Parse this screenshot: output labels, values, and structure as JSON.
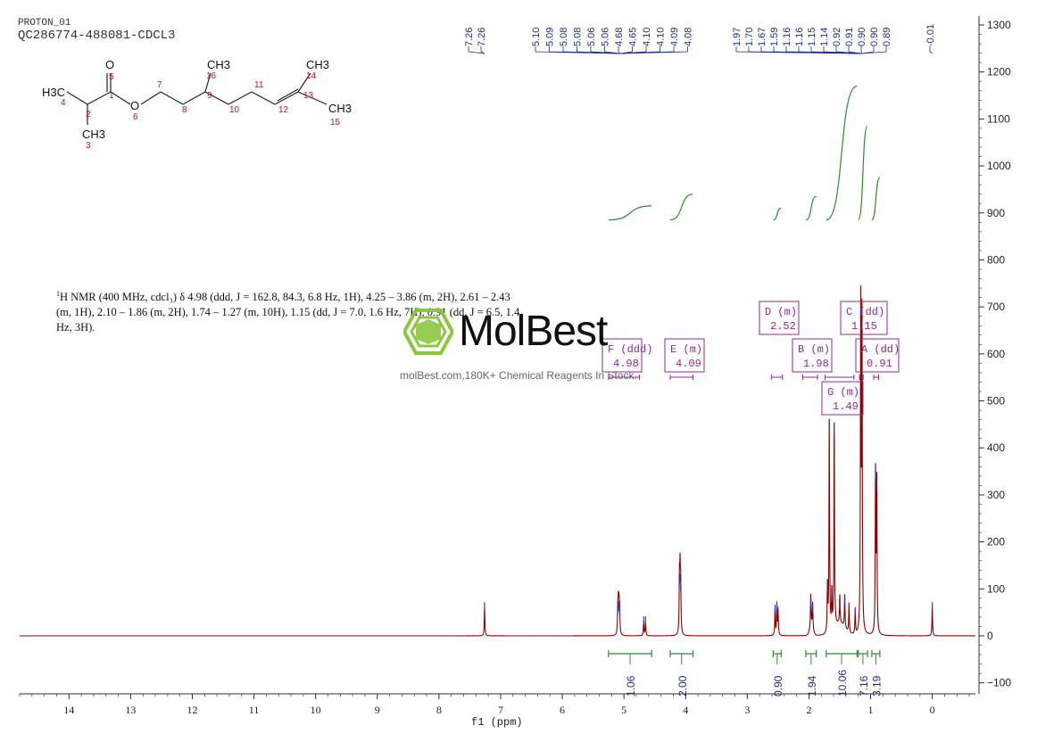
{
  "header": {
    "experiment": "PROTON_01",
    "sample": "QC286774-488081-CDCL3"
  },
  "description": {
    "sup": "1",
    "text_line1": "H NMR (400 MHz, cdcl₃) δ 4.98 (ddd, J = 162.8, 84.3, 6.8 Hz, 1H), 4.25 – 3.86 (m, 2H), 2.61 – 2.43",
    "text_line2": "(m, 1H), 2.10 – 1.86 (m, 2H), 1.74 – 1.27 (m, 10H), 1.15 (dd, J = 7.0, 1.6 Hz, 7H), 0.91 (dd, J = 6.5, 1.4",
    "text_line3": "Hz, 3H)."
  },
  "watermark": {
    "brand": "MolBest",
    "tagline": "molBest.com,180K+ Chemical Reagents In Stock."
  },
  "molecule": {
    "atoms": [
      {
        "label": "H3C",
        "num": "4"
      },
      {
        "label": "",
        "num": "2"
      },
      {
        "label": "CH3",
        "num": "3"
      },
      {
        "label": "",
        "num": "1"
      },
      {
        "label": "O",
        "num": "5"
      },
      {
        "label": "O",
        "num": "6"
      },
      {
        "label": "",
        "num": "7"
      },
      {
        "label": "",
        "num": "8"
      },
      {
        "label": "",
        "num": "9"
      },
      {
        "label": "CH3",
        "num": "16"
      },
      {
        "label": "",
        "num": "10"
      },
      {
        "label": "",
        "num": "11"
      },
      {
        "label": "",
        "num": "12"
      },
      {
        "label": "",
        "num": "13"
      },
      {
        "label": "CH3",
        "num": "14"
      },
      {
        "label": "CH3",
        "num": "15"
      }
    ]
  },
  "chart_data": {
    "type": "line",
    "xlabel": "f1 (ppm)",
    "xlim": [
      14.8,
      -0.7
    ],
    "x_ticks": [
      14,
      13,
      12,
      11,
      10,
      9,
      8,
      7,
      6,
      5,
      4,
      3,
      2,
      1,
      0
    ],
    "ylim": [
      -120,
      1320
    ],
    "y_ticks": [
      -100,
      0,
      100,
      200,
      300,
      400,
      500,
      600,
      700,
      800,
      900,
      1000,
      1100,
      1200,
      1300
    ],
    "peaks": [
      {
        "ppm": 7.26,
        "h": 60
      },
      {
        "ppm": 5.1,
        "h": 55
      },
      {
        "ppm": 5.09,
        "h": 62
      },
      {
        "ppm": 5.08,
        "h": 58
      },
      {
        "ppm": 5.07,
        "h": 50
      },
      {
        "ppm": 4.68,
        "h": 30
      },
      {
        "ppm": 4.65,
        "h": 30
      },
      {
        "ppm": 4.1,
        "h": 115
      },
      {
        "ppm": 4.09,
        "h": 120
      },
      {
        "ppm": 4.08,
        "h": 100
      },
      {
        "ppm": 2.55,
        "h": 55
      },
      {
        "ppm": 2.52,
        "h": 62
      },
      {
        "ppm": 2.5,
        "h": 50
      },
      {
        "ppm": 1.97,
        "h": 70
      },
      {
        "ppm": 1.94,
        "h": 55
      },
      {
        "ppm": 1.7,
        "h": 100
      },
      {
        "ppm": 1.67,
        "h": 450
      },
      {
        "ppm": 1.63,
        "h": 80
      },
      {
        "ppm": 1.59,
        "h": 435
      },
      {
        "ppm": 1.5,
        "h": 60
      },
      {
        "ppm": 1.42,
        "h": 70
      },
      {
        "ppm": 1.35,
        "h": 60
      },
      {
        "ppm": 1.25,
        "h": 50
      },
      {
        "ppm": 1.16,
        "h": 690
      },
      {
        "ppm": 1.14,
        "h": 660
      },
      {
        "ppm": 0.92,
        "h": 340
      },
      {
        "ppm": 0.9,
        "h": 320
      },
      {
        "ppm": 0.0,
        "h": 60
      }
    ],
    "peak_labels": [
      "7.26",
      "7.26",
      "5.10",
      "5.09",
      "5.08",
      "5.08",
      "5.06",
      "5.06",
      "4.68",
      "4.65",
      "4.10",
      "4.10",
      "4.09",
      "4.08",
      "1.97",
      "1.70",
      "1.67",
      "1.59",
      "1.16",
      "1.16",
      "1.15",
      "1.14",
      "0.92",
      "0.91",
      "0.90",
      "0.90",
      "0.89",
      "-0.01"
    ],
    "integrals": [
      {
        "from": 5.25,
        "to": 4.55,
        "value": "1.06",
        "y_start": 885,
        "y_end": 915
      },
      {
        "from": 4.25,
        "to": 3.88,
        "value": "2.00",
        "y_start": 885,
        "y_end": 940
      },
      {
        "from": 2.58,
        "to": 2.45,
        "value": "0.90",
        "y_start": 885,
        "y_end": 910
      },
      {
        "from": 2.05,
        "to": 1.88,
        "value": "1.94",
        "y_start": 885,
        "y_end": 935
      },
      {
        "from": 1.72,
        "to": 1.22,
        "value": "10.06",
        "y_start": 885,
        "y_end": 1170
      },
      {
        "from": 1.2,
        "to": 1.05,
        "value": "7.16",
        "y_start": 885,
        "y_end": 1085
      },
      {
        "from": 0.98,
        "to": 0.85,
        "value": "3.19",
        "y_start": 885,
        "y_end": 975
      }
    ],
    "multiplets": [
      {
        "id": "F",
        "type": "ddd",
        "shift": "4.98",
        "from": 5.25,
        "to": 4.75
      },
      {
        "id": "E",
        "type": "m",
        "shift": "4.09",
        "from": 4.25,
        "to": 3.88
      },
      {
        "id": "D",
        "type": "m",
        "shift": "2.52",
        "from": 2.61,
        "to": 2.43
      },
      {
        "id": "B",
        "type": "m",
        "shift": "1.98",
        "from": 2.1,
        "to": 1.86
      },
      {
        "id": "G",
        "type": "m",
        "shift": "1.49",
        "from": 1.74,
        "to": 1.27
      },
      {
        "id": "C",
        "type": "dd",
        "shift": "1.15",
        "from": 1.18,
        "to": 1.12
      },
      {
        "id": "A",
        "type": "dd",
        "shift": "0.91",
        "from": 0.95,
        "to": 0.87
      }
    ],
    "colors": {
      "spectrum": "#8b0000",
      "integral": "#2e8b2e",
      "peak_label": "#1a2e8c",
      "multiplet_box": "#8b2d8b",
      "axis": "#333333"
    }
  }
}
